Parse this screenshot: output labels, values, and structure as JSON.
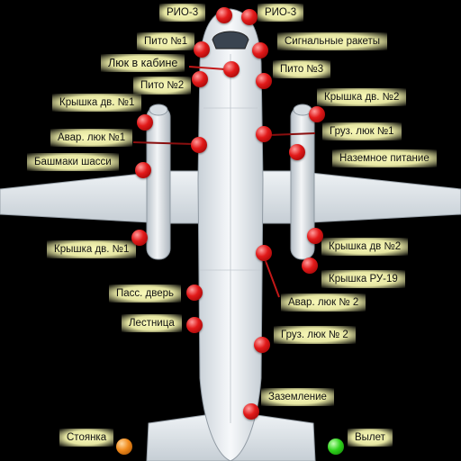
{
  "labels": {
    "rio3_left": "РИО-3",
    "rio3_right": "РИО-3",
    "pito1": "Пито №1",
    "signal_rockets": "Сигнальные ракеты",
    "cabin_hatch": "Люк в кабине",
    "pito3": "Пито №3",
    "pito2": "Пито №2",
    "engine_cover_1_upper": "Крышка дв. №1",
    "engine_cover_2_upper": "Крышка дв. №2",
    "emergency_hatch_1": "Авар. люк №1",
    "cargo_hatch_1": "Груз. люк №1",
    "chassis_chocks": "Башмаки шасси",
    "ground_power": "Наземное питание",
    "engine_cover_1_lower": "Крышка дв. №1",
    "engine_cover_2_lower": "Крышка дв №2",
    "ru19_cover": "Крышка РУ-19",
    "emergency_hatch_2": "Авар. люк № 2",
    "passenger_door": "Пасс. дверь",
    "ladder": "Лестница",
    "cargo_hatch_2": "Груз. люк № 2",
    "grounding": "Заземление",
    "parking": "Стоянка",
    "departure": "Вылет"
  },
  "colors": {
    "button_active": "#e21a1a",
    "parking_indicator": "#f08a1c",
    "departure_indicator": "#2fd31c",
    "label_background": "#ffffb4"
  }
}
